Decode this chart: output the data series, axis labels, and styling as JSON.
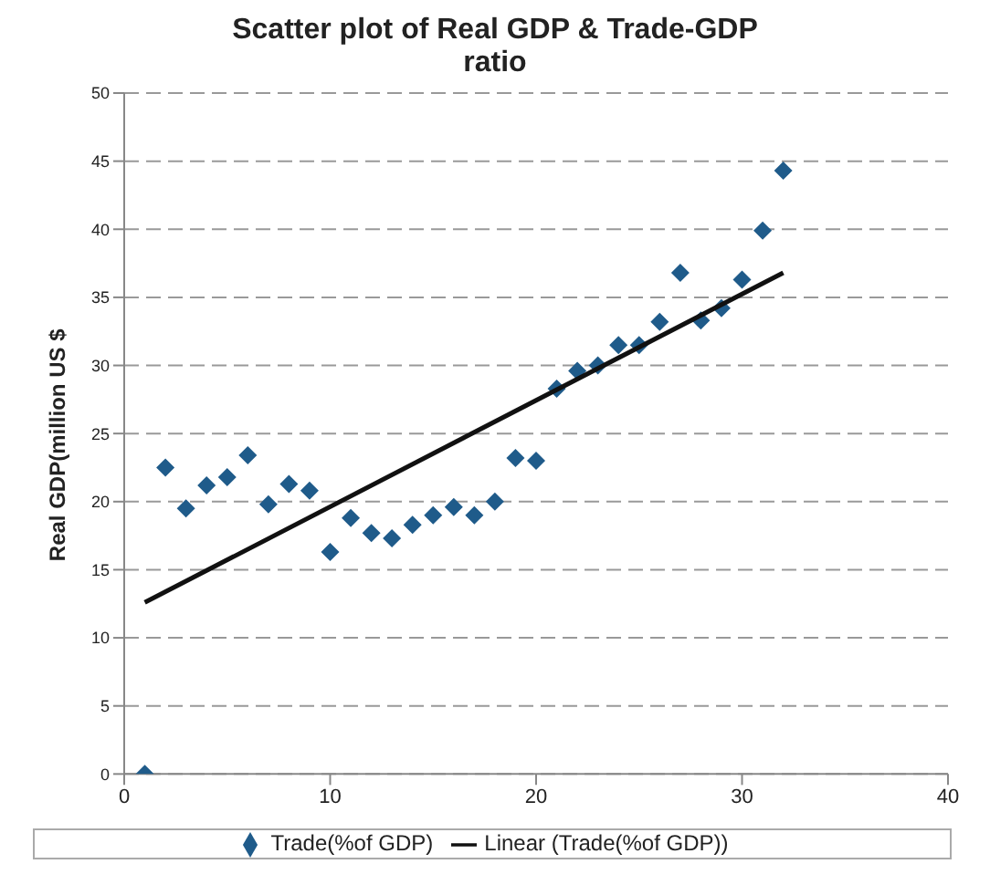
{
  "chart_data": {
    "type": "scatter",
    "title": "Scatter plot of Real GDP & Trade-GDP ratio",
    "ylabel": "Real GDP(million US $",
    "series": [
      {
        "name": "Trade(%of GDP)",
        "color": "#1f5b8a",
        "marker": "diamond",
        "x": [
          1,
          2,
          3,
          4,
          5,
          6,
          7,
          8,
          9,
          10,
          11,
          12,
          13,
          14,
          15,
          16,
          17,
          18,
          19,
          20,
          21,
          22,
          23,
          24,
          25,
          26,
          27,
          28,
          29,
          30,
          31,
          32
        ],
        "values": [
          0,
          22.5,
          19.5,
          21.2,
          21.8,
          23.4,
          19.8,
          21.3,
          20.8,
          16.3,
          18.8,
          17.7,
          17.3,
          18.3,
          19,
          19.6,
          19,
          20,
          23.2,
          23,
          28.3,
          29.6,
          30,
          31.5,
          31.5,
          33.2,
          36.8,
          33.3,
          34.2,
          36.3,
          39.9,
          44.3
        ]
      },
      {
        "name": "Linear (Trade(%of GDP))",
        "type": "line",
        "color": "#111111",
        "marker": "none",
        "x": [
          1,
          32
        ],
        "values": [
          12.6,
          36.8
        ]
      }
    ],
    "xlim": [
      0,
      40
    ],
    "xticks": [
      0,
      10,
      20,
      30,
      40
    ],
    "ylim": [
      0,
      50
    ],
    "yticks": [
      0,
      5,
      10,
      15,
      20,
      25,
      30,
      35,
      40,
      45,
      50
    ],
    "grid": "y",
    "legend": "bottom"
  }
}
